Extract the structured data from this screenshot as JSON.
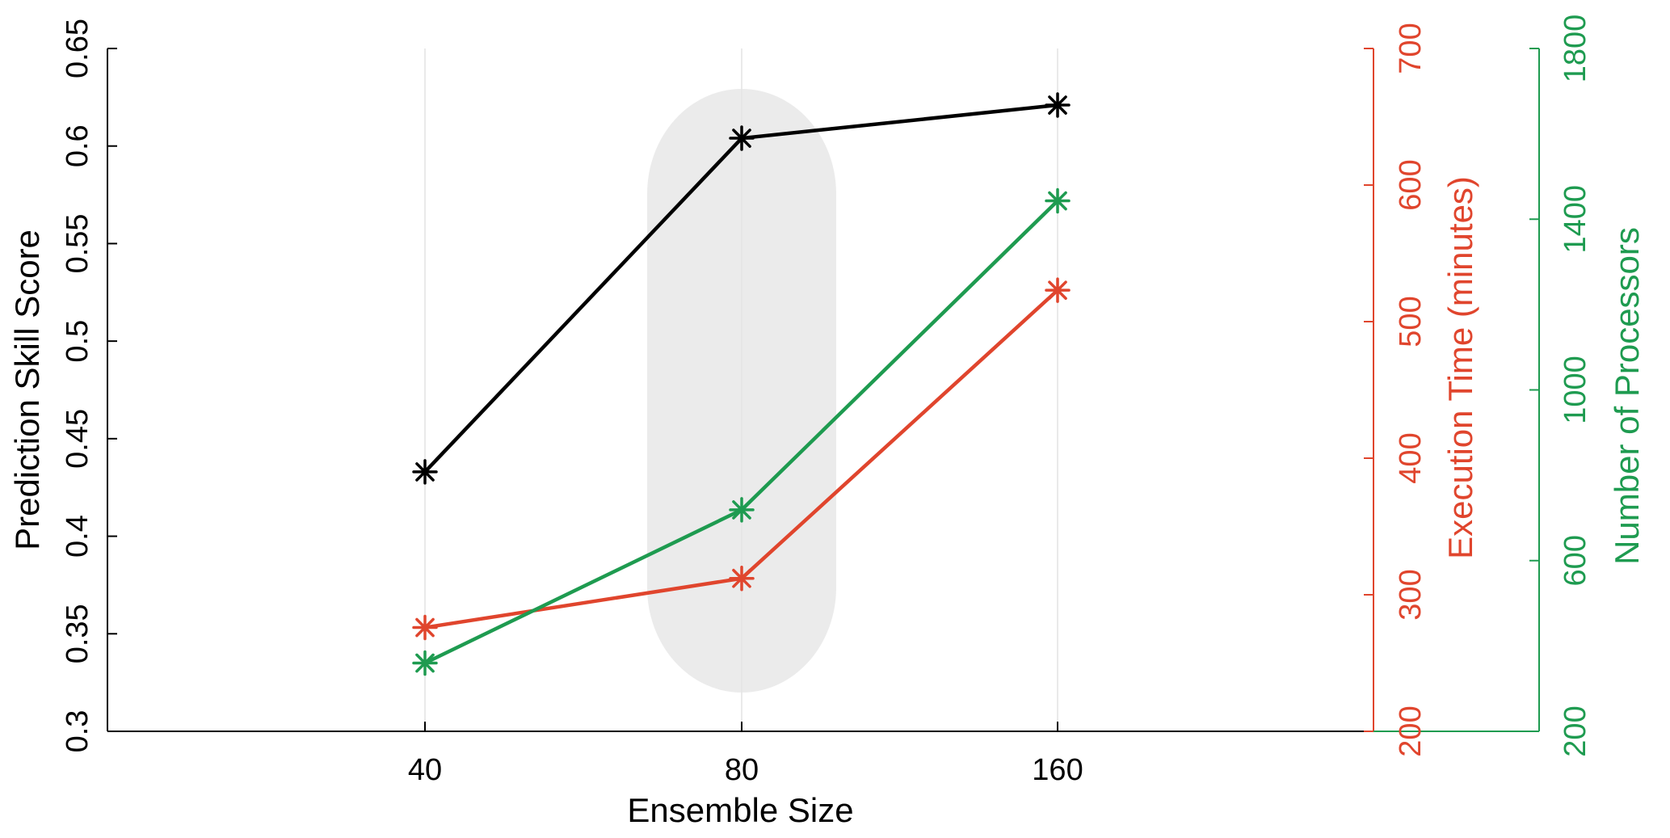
{
  "chart_data": {
    "type": "line",
    "xlabel": "Ensemble Size",
    "categories": [
      "40",
      "80",
      "160"
    ],
    "xlim": [
      0,
      4
    ],
    "y_axes": [
      {
        "id": "left",
        "label": "Prediction Skill Score",
        "range": [
          0.3,
          0.65
        ],
        "ticks": [
          "0.3",
          "0.35",
          "0.4",
          "0.45",
          "0.5",
          "0.55",
          "0.6",
          "0.65"
        ],
        "color": "#000000"
      },
      {
        "id": "right1",
        "label": "Execution Time (minutes)",
        "range": [
          200,
          700
        ],
        "ticks": [
          "200",
          "300",
          "400",
          "500",
          "600",
          "700"
        ],
        "color": "#e0452d"
      },
      {
        "id": "right2",
        "label": "Number of Processors",
        "range": [
          200,
          1800
        ],
        "ticks": [
          "200",
          "600",
          "1000",
          "1400",
          "1800"
        ],
        "color": "#1e9b50"
      }
    ],
    "series": [
      {
        "axis": "left",
        "color": "#000000",
        "values": [
          0.433,
          0.604,
          0.621
        ]
      },
      {
        "axis": "right1",
        "color": "#e0452d",
        "values": [
          276,
          312,
          523
        ]
      },
      {
        "axis": "right2",
        "color": "#1e9b50",
        "values": [
          360,
          719,
          1443
        ]
      }
    ],
    "highlight": {
      "category_index": 1,
      "color": "#ebebeb"
    },
    "grid_x": true
  }
}
